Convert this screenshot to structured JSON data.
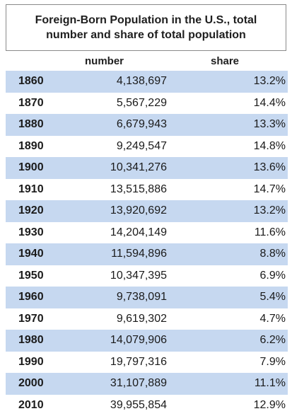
{
  "title": {
    "line1": "Foreign-Born Population in the U.S., total",
    "line2": "number and share of total population"
  },
  "columns": {
    "number": "number",
    "share": "share"
  },
  "colors": {
    "shaded_row": "#c6d8f0",
    "border": "#8a8a8a"
  },
  "chart_data": {
    "type": "table",
    "title": "Foreign-Born Population in the U.S., total number and share of total population",
    "columns": [
      "",
      "number",
      "share"
    ],
    "rows": [
      {
        "year": "1860",
        "number": "4,138,697",
        "share": "13.2%"
      },
      {
        "year": "1870",
        "number": "5,567,229",
        "share": "14.4%"
      },
      {
        "year": "1880",
        "number": "6,679,943",
        "share": "13.3%"
      },
      {
        "year": "1890",
        "number": "9,249,547",
        "share": "14.8%"
      },
      {
        "year": "1900",
        "number": "10,341,276",
        "share": "13.6%"
      },
      {
        "year": "1910",
        "number": "13,515,886",
        "share": "14.7%"
      },
      {
        "year": "1920",
        "number": "13,920,692",
        "share": "13.2%"
      },
      {
        "year": "1930",
        "number": "14,204,149",
        "share": "11.6%"
      },
      {
        "year": "1940",
        "number": "11,594,896",
        "share": "8.8%"
      },
      {
        "year": "1950",
        "number": "10,347,395",
        "share": "6.9%"
      },
      {
        "year": "1960",
        "number": "9,738,091",
        "share": "5.4%"
      },
      {
        "year": "1970",
        "number": "9,619,302",
        "share": "4.7%"
      },
      {
        "year": "1980",
        "number": "14,079,906",
        "share": "6.2%"
      },
      {
        "year": "1990",
        "number": "19,797,316",
        "share": "7.9%"
      },
      {
        "year": "2000",
        "number": "31,107,889",
        "share": "11.1%"
      },
      {
        "year": "2010",
        "number": "39,955,854",
        "share": "12.9%"
      }
    ]
  }
}
